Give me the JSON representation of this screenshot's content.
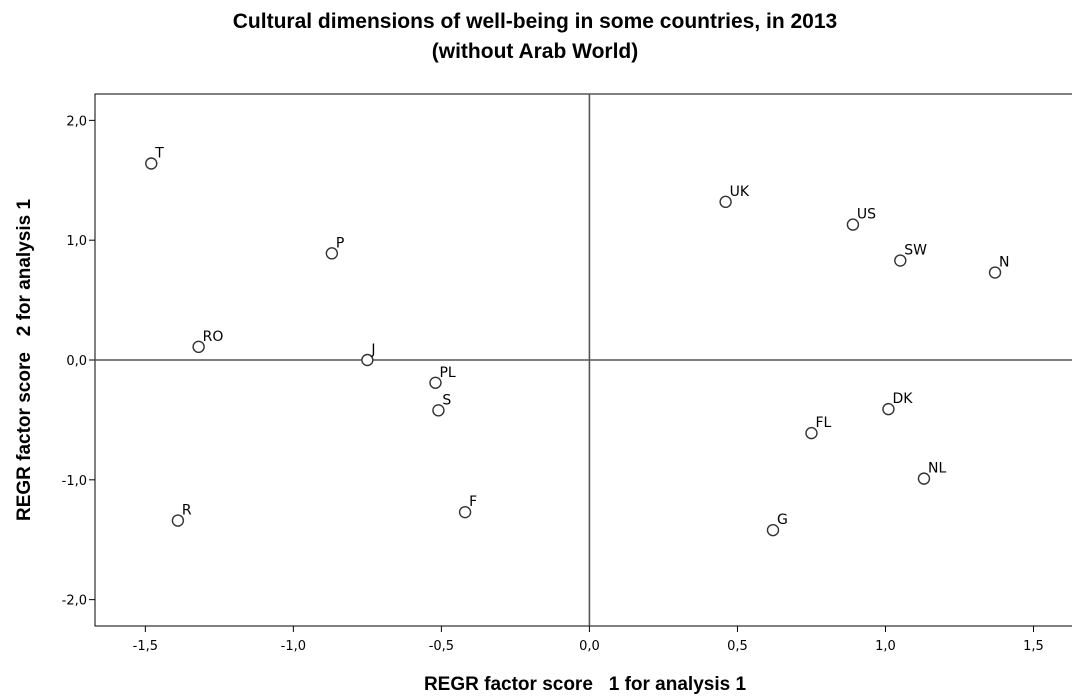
{
  "chart_data": {
    "type": "scatter",
    "title": "Cultural dimensions of well-being in some countries, in 2013",
    "subtitle": "(without Arab World)",
    "xlabel": "REGR factor score   1 for analysis 1",
    "ylabel": "REGR factor score   2 for analysis 1",
    "xlim": [
      -1.67,
      1.63
    ],
    "ylim": [
      -2.22,
      2.22
    ],
    "xticks": [
      -1.5,
      -1.0,
      -0.5,
      0.0,
      0.5,
      1.0,
      1.5
    ],
    "xtick_labels": [
      "-1,5",
      "-1,0",
      "-0,5",
      "0,0",
      "0,5",
      "1,0",
      "1,5"
    ],
    "yticks": [
      2.0,
      1.0,
      0.0,
      -1.0,
      -2.0
    ],
    "ytick_labels": [
      "2,0",
      "1,0",
      "0,0",
      "-1,0",
      "-2,0"
    ],
    "reference_lines": {
      "x": 0.0,
      "y": 0.0
    },
    "grid": false,
    "points": [
      {
        "label": "T",
        "x": -1.48,
        "y": 1.64
      },
      {
        "label": "P",
        "x": -0.87,
        "y": 0.89
      },
      {
        "label": "RO",
        "x": -1.32,
        "y": 0.11
      },
      {
        "label": "J",
        "x": -0.75,
        "y": 0.0
      },
      {
        "label": "PL",
        "x": -0.52,
        "y": -0.19
      },
      {
        "label": "S",
        "x": -0.51,
        "y": -0.42
      },
      {
        "label": "R",
        "x": -1.39,
        "y": -1.34
      },
      {
        "label": "F",
        "x": -0.42,
        "y": -1.27
      },
      {
        "label": "UK",
        "x": 0.46,
        "y": 1.32
      },
      {
        "label": "US",
        "x": 0.89,
        "y": 1.13
      },
      {
        "label": "SW",
        "x": 1.05,
        "y": 0.83
      },
      {
        "label": "N",
        "x": 1.37,
        "y": 0.73
      },
      {
        "label": "DK",
        "x": 1.01,
        "y": -0.41
      },
      {
        "label": "FL",
        "x": 0.75,
        "y": -0.61
      },
      {
        "label": "NL",
        "x": 1.13,
        "y": -0.99
      },
      {
        "label": "G",
        "x": 0.62,
        "y": -1.42
      }
    ]
  }
}
